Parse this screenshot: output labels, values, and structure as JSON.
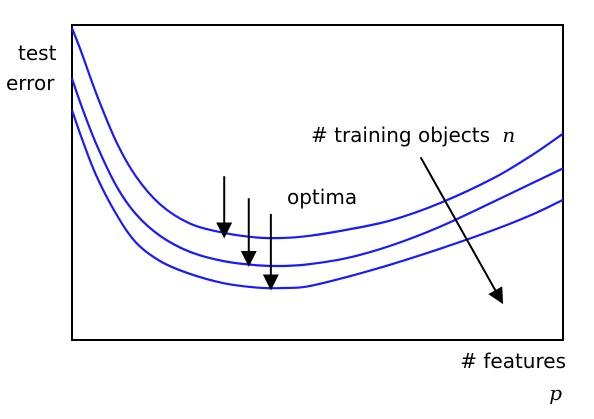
{
  "chart_data": {
    "type": "line",
    "title": "",
    "ylabel": [
      "test",
      "error"
    ],
    "xlabel": "# features",
    "xlabel_var": "p",
    "x_ticks": false,
    "y_ticks": false,
    "grid": false,
    "series_color": "#1a1aff",
    "series": [
      {
        "x": [
          0.0,
          0.02,
          0.05,
          0.09,
          0.13,
          0.18,
          0.24,
          0.31,
          0.38,
          0.43,
          0.48,
          0.56,
          0.65,
          0.75,
          0.86,
          0.94,
          1.0
        ],
        "y": [
          0.01,
          0.09,
          0.22,
          0.37,
          0.48,
          0.57,
          0.63,
          0.66,
          0.675,
          0.676,
          0.67,
          0.65,
          0.62,
          0.565,
          0.485,
          0.41,
          0.345
        ]
      },
      {
        "x": [
          0.0,
          0.02,
          0.05,
          0.09,
          0.13,
          0.18,
          0.24,
          0.31,
          0.38,
          0.43,
          0.48,
          0.56,
          0.65,
          0.75,
          0.86,
          0.94,
          1.0
        ],
        "y": [
          0.17,
          0.26,
          0.38,
          0.51,
          0.6,
          0.67,
          0.72,
          0.75,
          0.763,
          0.765,
          0.76,
          0.74,
          0.7,
          0.64,
          0.56,
          0.5,
          0.455
        ]
      },
      {
        "x": [
          0.0,
          0.02,
          0.05,
          0.09,
          0.13,
          0.18,
          0.24,
          0.31,
          0.38,
          0.43,
          0.48,
          0.56,
          0.65,
          0.75,
          0.86,
          0.94,
          1.0
        ],
        "y": [
          0.27,
          0.36,
          0.48,
          0.6,
          0.69,
          0.75,
          0.79,
          0.82,
          0.834,
          0.835,
          0.83,
          0.8,
          0.76,
          0.71,
          0.65,
          0.6,
          0.555
        ]
      }
    ],
    "annotations": [
      {
        "text": "optima",
        "arrows": [
          {
            "x": 0.31,
            "y_from": 0.48,
            "y_to": 0.665
          },
          {
            "x": 0.36,
            "y_from": 0.55,
            "y_to": 0.755
          },
          {
            "x": 0.405,
            "y_from": 0.6,
            "y_to": 0.83
          }
        ]
      },
      {
        "text": "# training objects",
        "var": "n",
        "arrow": {
          "x_from": 0.71,
          "y_from": 0.42,
          "x_to": 0.874,
          "y_to": 0.875
        }
      }
    ]
  }
}
